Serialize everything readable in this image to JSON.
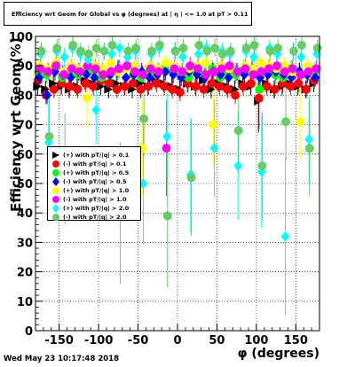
{
  "header": {
    "title": "Efficiency wrt Geom for Global vs φ (degrees) at | η | <= 1.0 at pT > 0.11"
  },
  "footer": {
    "timestamp": "Wed May 23 10:17:48 2018"
  },
  "colors": {
    "black": "#000000",
    "red": "#ff0000",
    "green": "#00ff00",
    "blue": "#0000ff",
    "yellow": "#ffff00",
    "magenta": "#ff00ff",
    "cyan": "#00ffff",
    "lightgreen": "#66cc66"
  },
  "chart_data": {
    "type": "scatter",
    "title": "Efficiency wrt Geom for Global vs φ (degrees) at | η | <= 1.0 at pT > 0.11",
    "xlabel": "φ (degrees)",
    "ylabel": "Efficiency wrt Geom(%)",
    "xlim": [
      -180,
      180
    ],
    "ylim": [
      0,
      100
    ],
    "grid": true,
    "legend_position": "middle-left",
    "x_ticks": [
      "-150",
      "-100",
      "-50",
      "0",
      "50",
      "100",
      "150"
    ],
    "y_ticks": [
      "0",
      "10",
      "20",
      "30",
      "40",
      "50",
      "60",
      "70",
      "80",
      "90",
      "100"
    ],
    "series": [
      {
        "name": "(+) with pT/|q| > 0.1",
        "color": "#000000",
        "marker": "triangle-right",
        "x": [
          -175,
          -165,
          -155,
          -145,
          -135,
          -125,
          -115,
          -105,
          -95,
          -85,
          -75,
          -65,
          -55,
          -45,
          -35,
          -25,
          -15,
          -5,
          5,
          15,
          25,
          35,
          45,
          55,
          65,
          75,
          85,
          95,
          105,
          115,
          125,
          135,
          145,
          155,
          165,
          175
        ],
        "y": [
          83,
          82,
          84,
          83,
          82,
          83,
          85,
          84,
          83,
          82,
          84,
          83,
          82,
          84,
          83,
          85,
          84,
          83,
          82,
          84,
          83,
          85,
          82,
          84,
          83,
          82,
          84,
          83,
          78,
          84,
          82,
          83,
          84,
          83,
          82,
          84
        ]
      },
      {
        "name": "(-) with pT/|q| > 0.1",
        "color": "#ff0000",
        "marker": "circle",
        "x": [
          -175,
          -165,
          -155,
          -145,
          -135,
          -125,
          -115,
          -105,
          -95,
          -85,
          -75,
          -65,
          -55,
          -45,
          -35,
          -25,
          -15,
          -5,
          5,
          15,
          25,
          35,
          45,
          55,
          65,
          75,
          85,
          95,
          105,
          115,
          125,
          135,
          145,
          155,
          165,
          175
        ],
        "y": [
          85,
          80,
          82,
          84,
          83,
          82,
          84,
          83,
          85,
          84,
          82,
          83,
          84,
          82,
          83,
          84,
          83,
          82,
          81,
          84,
          83,
          82,
          84,
          83,
          82,
          80,
          83,
          84,
          79,
          83,
          82,
          84,
          83,
          84,
          82,
          85
        ]
      },
      {
        "name": "(+) with pT/|q| > 0.5",
        "color": "#00ff00",
        "marker": "circle",
        "x": [
          -175,
          -165,
          -155,
          -145,
          -135,
          -125,
          -115,
          -105,
          -95,
          -85,
          -75,
          -65,
          -55,
          -45,
          -35,
          -25,
          -15,
          -5,
          5,
          15,
          25,
          35,
          45,
          55,
          65,
          75,
          85,
          95,
          105,
          115,
          125,
          135,
          145,
          155,
          165,
          175
        ],
        "y": [
          88,
          87,
          89,
          86,
          88,
          87,
          89,
          88,
          86,
          87,
          88,
          89,
          87,
          86,
          88,
          87,
          89,
          88,
          87,
          86,
          88,
          87,
          89,
          86,
          88,
          87,
          89,
          88,
          82,
          88,
          87,
          86,
          89,
          88,
          87,
          88
        ]
      },
      {
        "name": "(-) with pT/|q| > 0.5",
        "color": "#0000ff",
        "marker": "diamond",
        "x": [
          -175,
          -165,
          -155,
          -145,
          -135,
          -125,
          -115,
          -105,
          -95,
          -85,
          -75,
          -65,
          -55,
          -45,
          -35,
          -25,
          -15,
          -5,
          5,
          15,
          25,
          35,
          45,
          55,
          65,
          75,
          85,
          95,
          105,
          115,
          125,
          135,
          145,
          155,
          165,
          175
        ],
        "y": [
          86,
          80,
          88,
          87,
          86,
          88,
          87,
          86,
          88,
          87,
          89,
          86,
          87,
          88,
          86,
          87,
          88,
          87,
          86,
          88,
          87,
          86,
          88,
          87,
          86,
          88,
          87,
          89,
          86,
          87,
          88,
          87,
          86,
          88,
          87,
          86
        ]
      },
      {
        "name": "(+) with pT/|q| > 1.0",
        "color": "#ffff00",
        "marker": "circle",
        "x": [
          -175,
          -165,
          -155,
          -145,
          -135,
          -125,
          -115,
          -105,
          -95,
          -85,
          -75,
          -65,
          -55,
          -45,
          -35,
          -25,
          -15,
          -5,
          5,
          15,
          25,
          35,
          45,
          55,
          65,
          75,
          85,
          95,
          105,
          115,
          125,
          135,
          145,
          155,
          165,
          175
        ],
        "y": [
          90,
          89,
          91,
          88,
          90,
          89,
          79,
          90,
          89,
          91,
          88,
          89,
          90,
          62,
          90,
          89,
          91,
          90,
          88,
          89,
          90,
          91,
          70,
          90,
          89,
          88,
          90,
          89,
          91,
          90,
          89,
          90,
          88,
          71,
          90,
          89
        ]
      },
      {
        "name": "(-) with pT/|q| > 1.0",
        "color": "#ff00ff",
        "marker": "circle",
        "x": [
          -175,
          -165,
          -155,
          -145,
          -135,
          -125,
          -115,
          -105,
          -95,
          -85,
          -75,
          -65,
          -55,
          -45,
          -35,
          -25,
          -15,
          -5,
          5,
          15,
          25,
          35,
          45,
          55,
          65,
          75,
          85,
          95,
          105,
          115,
          125,
          135,
          145,
          155,
          165,
          175
        ],
        "y": [
          89,
          88,
          90,
          87,
          89,
          88,
          90,
          89,
          87,
          88,
          89,
          90,
          88,
          87,
          89,
          88,
          62,
          89,
          88,
          90,
          89,
          87,
          88,
          89,
          90,
          88,
          89,
          87,
          88,
          89,
          90,
          88,
          89,
          87,
          88,
          89
        ]
      },
      {
        "name": "(+) with pT/|q| > 2.0",
        "color": "#00ffff",
        "marker": "diamond",
        "x": [
          -175,
          -165,
          -155,
          -145,
          -135,
          -125,
          -115,
          -105,
          -95,
          -85,
          -75,
          -65,
          -55,
          -45,
          -35,
          -25,
          -15,
          -5,
          5,
          15,
          25,
          35,
          45,
          55,
          65,
          75,
          85,
          95,
          105,
          115,
          125,
          135,
          145,
          155,
          165,
          175
        ],
        "y": [
          94,
          64,
          95,
          93,
          96,
          94,
          92,
          75,
          95,
          94,
          96,
          93,
          95,
          50,
          94,
          96,
          66,
          95,
          93,
          53,
          94,
          96,
          62,
          95,
          94,
          56,
          95,
          93,
          54,
          96,
          94,
          32,
          95,
          93,
          65,
          94
        ]
      },
      {
        "name": "(-) with pT/|q| > 2.0",
        "color": "#66cc66",
        "marker": "circle",
        "x": [
          -175,
          -165,
          -155,
          -145,
          -135,
          -125,
          -115,
          -105,
          -95,
          -85,
          -75,
          -65,
          -55,
          -45,
          -35,
          -25,
          -15,
          -5,
          5,
          15,
          25,
          35,
          45,
          55,
          65,
          75,
          85,
          95,
          105,
          115,
          125,
          135,
          145,
          155,
          165,
          175
        ],
        "y": [
          95,
          66,
          96,
          55,
          97,
          95,
          94,
          96,
          95,
          97,
          40,
          95,
          96,
          72,
          95,
          97,
          39,
          95,
          96,
          52,
          97,
          95,
          96,
          94,
          95,
          68,
          96,
          97,
          56,
          95,
          96,
          71,
          95,
          97,
          62,
          96
        ]
      }
    ]
  }
}
